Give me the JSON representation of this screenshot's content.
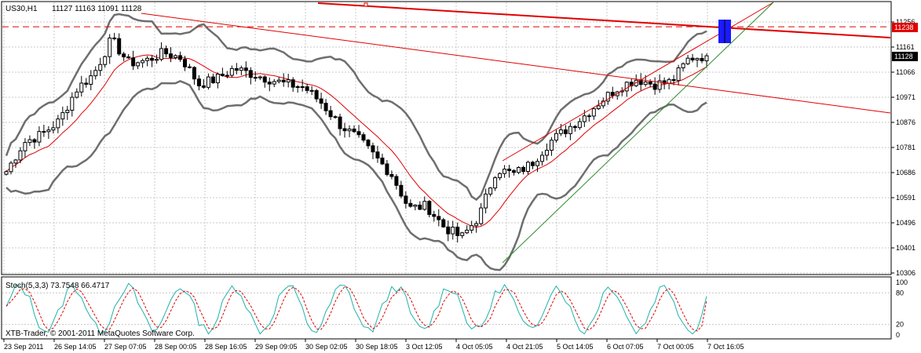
{
  "header": {
    "symbol": "US30,H1",
    "ohlc": "11127 11163 11091 11128"
  },
  "indicator": {
    "label": "Stoch(5,3,3) 73.7548 66.4717",
    "levels": [
      "100",
      "80",
      "20",
      "0"
    ]
  },
  "copyright": "XTB-Trader, © 2001-2011 MetaQuotes Software Corp.",
  "price_axis": {
    "ticks": [
      "11256",
      "11161",
      "11066",
      "10971",
      "10876",
      "10781",
      "10686",
      "10591",
      "10496",
      "10401",
      "10306"
    ],
    "marker_level": "11238",
    "current_price": "11128"
  },
  "time_axis": {
    "ticks": [
      "23 Sep 2011",
      "26 Sep 14:05",
      "27 Sep 07:05",
      "28 Sep 00:05",
      "28 Sep 16:05",
      "29 Sep 09:05",
      "30 Sep 02:05",
      "30 Sep 18:05",
      "3 Oct 12:05",
      "4 Oct 05:05",
      "4 Oct 21:05",
      "5 Oct 14:05",
      "6 Oct 07:05",
      "7 Oct 00:05",
      "7 Oct 16:05"
    ]
  },
  "colors": {
    "background": "#ffffff",
    "grid": "#c8c8c8",
    "candle": "#000000",
    "bollinger": "#6e6e6e",
    "moving_average": "#e00000",
    "trendline_red": "#e00000",
    "trendline_green": "#2e8b2e",
    "marker_blue": "#1a1aff",
    "stoch_main": "#20b2aa",
    "stoch_signal": "#e00000",
    "label_bg_red": "#e00000",
    "label_bg_black": "#000000"
  },
  "chart_data": {
    "type": "candlestick",
    "instrument": "US30",
    "timeframe": "H1",
    "x": [
      "23 Sep 2011",
      "26 Sep 14:05",
      "27 Sep 07:05",
      "28 Sep 00:05",
      "28 Sep 16:05",
      "29 Sep 09:05",
      "30 Sep 02:05",
      "30 Sep 18:05",
      "3 Oct 12:05",
      "4 Oct 05:05",
      "4 Oct 21:05",
      "5 Oct 14:05",
      "6 Oct 07:05",
      "7 Oct 00:05",
      "7 Oct 16:05"
    ],
    "ylim": [
      10306,
      11256
    ],
    "close_path": [
      10690,
      10800,
      10830,
      10880,
      11000,
      11060,
      11190,
      11100,
      11110,
      11140,
      11120,
      11020,
      11040,
      11080,
      11060,
      11040,
      11020,
      11010,
      10950,
      10870,
      10820,
      10750,
      10680,
      10550,
      10560,
      10480,
      10440,
      10520,
      10700,
      10680,
      10720,
      10800,
      10850,
      10900,
      10960,
      11010,
      11040,
      11020,
      11030,
      11120,
      11128
    ],
    "last_close": 11128,
    "horizontal_level": 11238,
    "stochastic": {
      "main": 73.7548,
      "signal": 66.4717,
      "levels": [
        80,
        20
      ],
      "range": [
        0,
        100
      ]
    }
  }
}
